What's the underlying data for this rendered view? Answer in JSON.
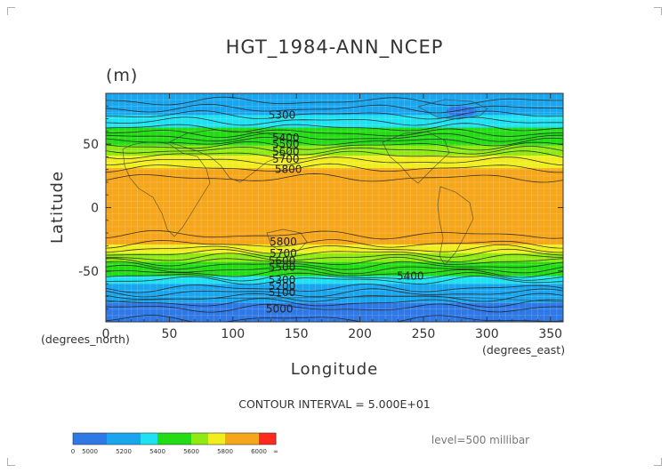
{
  "chart_data": {
    "type": "heatmap",
    "title": "HGT_1984-ANN_NCEP",
    "units": "(m)",
    "xlabel": "Longitude",
    "ylabel": "Latitude",
    "x_unit_label": "(degrees_east)",
    "y_unit_label": "(degrees_north)",
    "xlim": [
      0,
      360
    ],
    "ylim": [
      -90,
      90
    ],
    "x_ticks": [
      "0",
      "50",
      "100",
      "150",
      "200",
      "250",
      "300",
      "350"
    ],
    "y_ticks": [
      "50",
      "0",
      "-50"
    ],
    "x_tick_values": [
      0,
      50,
      100,
      150,
      200,
      250,
      300,
      350
    ],
    "y_tick_values": [
      50,
      0,
      -50
    ],
    "contour_interval_text": "CONTOUR INTERVAL = 5.000E+01",
    "level_text": "level=500 millibar",
    "colorbar": {
      "boundaries": [
        "0",
        "5000",
        "5200",
        "5400",
        "5600",
        "5800",
        "6000",
        "∞"
      ],
      "bins": [
        {
          "from": 0,
          "to": 5000,
          "color": "#2f79e6"
        },
        {
          "from": 5000,
          "to": 5100,
          "color": "#2f79e6"
        },
        {
          "from": 5100,
          "to": 5200,
          "color": "#1aa6ee"
        },
        {
          "from": 5200,
          "to": 5300,
          "color": "#1aa6ee"
        },
        {
          "from": 5300,
          "to": 5400,
          "color": "#1fe1f1"
        },
        {
          "from": 5400,
          "to": 5500,
          "color": "#23dc14"
        },
        {
          "from": 5500,
          "to": 5600,
          "color": "#23dc14"
        },
        {
          "from": 5600,
          "to": 5700,
          "color": "#8eea12"
        },
        {
          "from": 5700,
          "to": 5800,
          "color": "#f0ee1e"
        },
        {
          "from": 5800,
          "to": 5900,
          "color": "#f5a61b"
        },
        {
          "from": 5900,
          "to": 6000,
          "color": "#f5a61b"
        },
        {
          "from": 6000,
          "to": 6100,
          "color": "#ff2a1d"
        }
      ]
    },
    "zonal_mean_profile": {
      "latitude": [
        90,
        80,
        70,
        60,
        50,
        40,
        30,
        20,
        10,
        0,
        -10,
        -20,
        -30,
        -40,
        -50,
        -60,
        -70,
        -80,
        -90
      ],
      "hgt_m": [
        5150,
        5230,
        5330,
        5430,
        5580,
        5720,
        5810,
        5870,
        5880,
        5880,
        5880,
        5860,
        5790,
        5640,
        5480,
        5300,
        5160,
        5040,
        4990
      ]
    },
    "contour_labels": [
      {
        "text": "5300",
        "lon": 128,
        "lat": 73
      },
      {
        "text": "5400",
        "lon": 131,
        "lat": 55
      },
      {
        "text": "5500",
        "lon": 131,
        "lat": 50
      },
      {
        "text": "5600",
        "lon": 131,
        "lat": 44
      },
      {
        "text": "5700",
        "lon": 131,
        "lat": 38
      },
      {
        "text": "5800",
        "lon": 133,
        "lat": 30
      },
      {
        "text": "5800",
        "lon": 129,
        "lat": -27
      },
      {
        "text": "5700",
        "lon": 129,
        "lat": -36
      },
      {
        "text": "5600",
        "lon": 128,
        "lat": -42
      },
      {
        "text": "5500",
        "lon": 128,
        "lat": -47
      },
      {
        "text": "5400",
        "lon": 229,
        "lat": -54
      },
      {
        "text": "5300",
        "lon": 128,
        "lat": -57
      },
      {
        "text": "5200",
        "lon": 128,
        "lat": -62
      },
      {
        "text": "5100",
        "lon": 128,
        "lat": -67
      },
      {
        "text": "5000",
        "lon": 126,
        "lat": -80
      }
    ],
    "low_region_note": "5100-5200 blue patch near lon 255-300, lat 68-85"
  }
}
